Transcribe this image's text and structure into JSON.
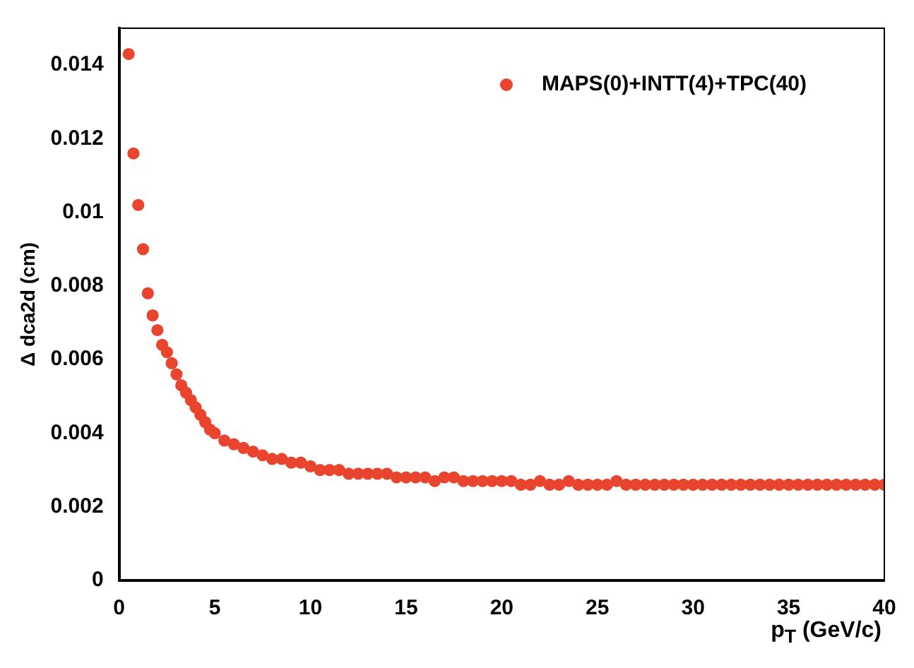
{
  "chart_data": {
    "type": "scatter",
    "xlabel": "p$_{T}$ (GeV/c)",
    "ylabel": "Δ dca2d (cm)",
    "xlim": [
      0,
      40
    ],
    "xticks": [
      0,
      5,
      10,
      15,
      20,
      25,
      30,
      35,
      40
    ],
    "ylim": [
      0,
      0.015
    ],
    "yticks": [
      0,
      0.002,
      0.004,
      0.006,
      0.008,
      0.01,
      0.012,
      0.014
    ],
    "grid": false,
    "legend": "top right",
    "marker": "circle",
    "series": [
      {
        "name": "MAPS(0)+INTT(4)+TPC(40)",
        "color": "#e8442e",
        "x": [
          0.5,
          0.75,
          1,
          1.25,
          1.5,
          1.75,
          2,
          2.25,
          2.5,
          2.75,
          3,
          3.25,
          3.5,
          3.75,
          4,
          4.25,
          4.5,
          4.75,
          5,
          5.5,
          6,
          6.5,
          7,
          7.5,
          8,
          8.5,
          9,
          9.5,
          10,
          10.5,
          11,
          11.5,
          12,
          12.5,
          13,
          13.5,
          14,
          14.5,
          15,
          15.5,
          16,
          16.5,
          17,
          17.5,
          18,
          18.5,
          19,
          19.5,
          20,
          20.5,
          21,
          21.5,
          22,
          22.5,
          23,
          23.5,
          24,
          24.5,
          25,
          25.5,
          26,
          26.5,
          27,
          27.5,
          28,
          28.5,
          29,
          29.5,
          30,
          30.5,
          31,
          31.5,
          32,
          32.5,
          33,
          33.5,
          34,
          34.5,
          35,
          35.5,
          36,
          36.5,
          37,
          37.5,
          38,
          38.5,
          39,
          39.5,
          40
        ],
        "values": [
          0.0143,
          0.0116,
          0.0102,
          0.009,
          0.0078,
          0.0072,
          0.0068,
          0.0064,
          0.0062,
          0.0059,
          0.0056,
          0.0053,
          0.0051,
          0.0049,
          0.0047,
          0.0045,
          0.0043,
          0.0041,
          0.004,
          0.0038,
          0.0037,
          0.0036,
          0.0035,
          0.0034,
          0.0033,
          0.0033,
          0.0032,
          0.0032,
          0.0031,
          0.003,
          0.003,
          0.003,
          0.0029,
          0.0029,
          0.0029,
          0.0029,
          0.0029,
          0.0028,
          0.0028,
          0.0028,
          0.0028,
          0.0027,
          0.0028,
          0.0028,
          0.0027,
          0.0027,
          0.0027,
          0.0027,
          0.0027,
          0.0027,
          0.0026,
          0.0026,
          0.0027,
          0.0026,
          0.0026,
          0.0027,
          0.0026,
          0.0026,
          0.0026,
          0.0026,
          0.0027,
          0.0026,
          0.0026,
          0.0026,
          0.0026,
          0.0026,
          0.0026,
          0.0026,
          0.0026,
          0.0026,
          0.0026,
          0.0026,
          0.0026,
          0.0026,
          0.0026,
          0.0026,
          0.0026,
          0.0026,
          0.0026,
          0.0026,
          0.0026,
          0.0026,
          0.0026,
          0.0026,
          0.0026,
          0.0026,
          0.0026,
          0.0026,
          0.0026
        ]
      }
    ]
  }
}
